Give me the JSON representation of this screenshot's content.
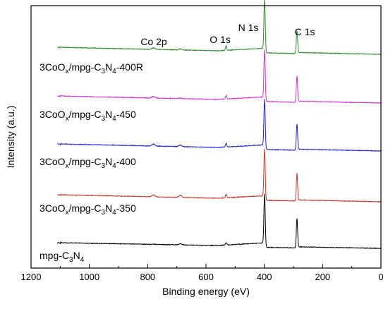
{
  "chart_data": {
    "type": "line",
    "xlabel": "Binding energy (eV)",
    "ylabel": "Intensity (a.u.)",
    "xlim": [
      1200,
      0
    ],
    "x_reversed": true,
    "xticks": [
      1200,
      1000,
      800,
      600,
      400,
      200,
      0
    ],
    "y_ticks_shown": false,
    "grid": false,
    "legend": "none",
    "peak_labels": [
      {
        "text": "Co 2p",
        "x": 780
      },
      {
        "text": "O 1s",
        "x": 531
      },
      {
        "text": "N 1s",
        "x": 399
      },
      {
        "text": "C 1s",
        "x": 288
      }
    ],
    "series": [
      {
        "name_parts": [
          "mpg-C",
          "3",
          "N",
          "4",
          ""
        ],
        "color": "#000000",
        "offset": 0,
        "peaks": [
          [
            1105,
            2
          ],
          [
            780,
            0.5
          ],
          [
            688,
            1.5
          ],
          [
            531,
            3
          ],
          [
            399,
            72
          ],
          [
            288,
            38
          ]
        ]
      },
      {
        "name_parts": [
          "3CoO",
          "x",
          "/mpg-C",
          "3",
          "N",
          "4",
          "-350"
        ],
        "color": "#c0392b",
        "offset": 1,
        "peaks": [
          [
            1105,
            2
          ],
          [
            780,
            2.5
          ],
          [
            688,
            3
          ],
          [
            531,
            5
          ],
          [
            399,
            70
          ],
          [
            288,
            36
          ]
        ]
      },
      {
        "name_parts": [
          "3CoO",
          "x",
          "/mpg-C",
          "3",
          "N",
          "4",
          "-400"
        ],
        "color": "#2222cc",
        "offset": 2,
        "peaks": [
          [
            1105,
            2
          ],
          [
            780,
            2.5
          ],
          [
            688,
            2
          ],
          [
            531,
            5
          ],
          [
            399,
            68
          ],
          [
            288,
            34
          ]
        ]
      },
      {
        "name_parts": [
          "3CoO",
          "x",
          "/mpg-C",
          "3",
          "N",
          "4",
          "-450"
        ],
        "color": "#cc33cc",
        "offset": 3,
        "peaks": [
          [
            1105,
            2
          ],
          [
            780,
            2
          ],
          [
            688,
            1
          ],
          [
            531,
            5
          ],
          [
            399,
            70
          ],
          [
            288,
            34
          ]
        ]
      },
      {
        "name_parts": [
          "3CoO",
          "x",
          "/mpg-C",
          "3",
          "N",
          "4",
          "-400R"
        ],
        "color": "#2e8b2e",
        "offset": 4,
        "peaks": [
          [
            1105,
            2
          ],
          [
            780,
            2
          ],
          [
            688,
            1.5
          ],
          [
            531,
            6
          ],
          [
            399,
            72
          ],
          [
            288,
            30
          ]
        ]
      }
    ]
  }
}
